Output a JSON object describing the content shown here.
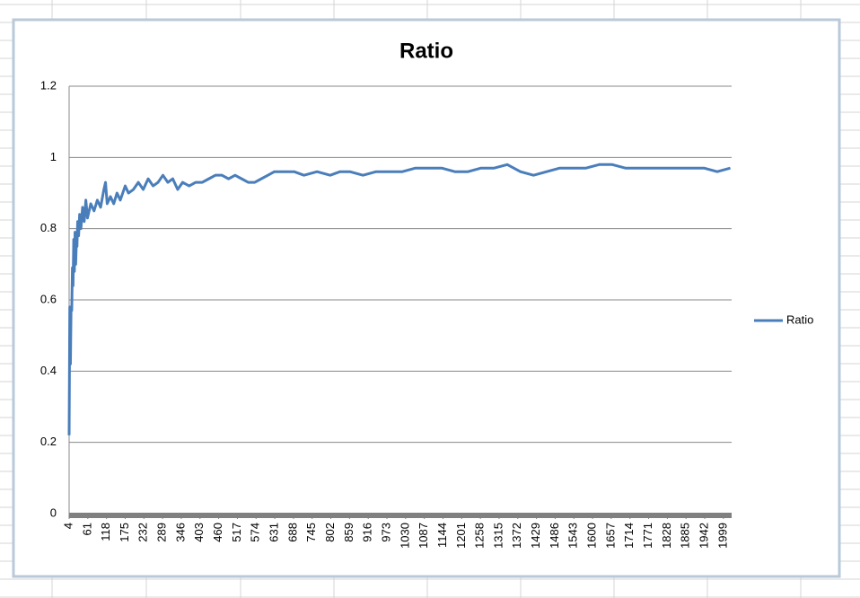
{
  "chart_data": {
    "type": "line",
    "title": "Ratio",
    "x": [
      4,
      6,
      8,
      10,
      12,
      14,
      16,
      18,
      20,
      22,
      24,
      26,
      28,
      30,
      33,
      36,
      40,
      45,
      50,
      55,
      60,
      70,
      80,
      90,
      100,
      110,
      115,
      120,
      130,
      140,
      150,
      160,
      175,
      185,
      200,
      215,
      230,
      245,
      260,
      275,
      290,
      305,
      320,
      335,
      350,
      370,
      390,
      410,
      430,
      450,
      470,
      490,
      510,
      530,
      550,
      570,
      590,
      610,
      630,
      660,
      690,
      720,
      760,
      800,
      830,
      860,
      900,
      940,
      980,
      1020,
      1060,
      1100,
      1140,
      1180,
      1220,
      1260,
      1300,
      1340,
      1380,
      1420,
      1460,
      1500,
      1540,
      1580,
      1620,
      1660,
      1700,
      1740,
      1780,
      1820,
      1860,
      1900,
      1940,
      1980,
      2020
    ],
    "series": [
      {
        "name": "Ratio",
        "color": "#4a7ebb",
        "values": [
          0.22,
          0.58,
          0.42,
          0.58,
          0.57,
          0.69,
          0.64,
          0.77,
          0.68,
          0.79,
          0.7,
          0.76,
          0.75,
          0.82,
          0.78,
          0.84,
          0.8,
          0.86,
          0.82,
          0.88,
          0.83,
          0.87,
          0.85,
          0.88,
          0.86,
          0.91,
          0.93,
          0.87,
          0.89,
          0.87,
          0.9,
          0.88,
          0.92,
          0.9,
          0.91,
          0.93,
          0.91,
          0.94,
          0.92,
          0.93,
          0.95,
          0.93,
          0.94,
          0.91,
          0.93,
          0.92,
          0.93,
          0.93,
          0.94,
          0.95,
          0.95,
          0.94,
          0.95,
          0.94,
          0.93,
          0.93,
          0.94,
          0.95,
          0.96,
          0.96,
          0.96,
          0.95,
          0.96,
          0.95,
          0.96,
          0.96,
          0.95,
          0.96,
          0.96,
          0.96,
          0.97,
          0.97,
          0.97,
          0.96,
          0.96,
          0.97,
          0.97,
          0.98,
          0.96,
          0.95,
          0.96,
          0.97,
          0.97,
          0.97,
          0.98,
          0.98,
          0.97,
          0.97,
          0.97,
          0.97,
          0.97,
          0.97,
          0.97,
          0.96,
          0.97
        ]
      }
    ],
    "xlim": [
      4,
      2024
    ],
    "xticks": [
      4,
      61,
      118,
      175,
      232,
      289,
      346,
      403,
      460,
      517,
      574,
      631,
      688,
      745,
      802,
      859,
      916,
      973,
      1030,
      1087,
      1144,
      1201,
      1258,
      1315,
      1372,
      1429,
      1486,
      1543,
      1600,
      1657,
      1714,
      1771,
      1828,
      1885,
      1942,
      1999
    ],
    "ylim": [
      0,
      1.2
    ],
    "yticks": [
      0,
      0.2,
      0.4,
      0.6,
      0.8,
      1,
      1.2
    ],
    "grid": true,
    "legend": "right"
  }
}
